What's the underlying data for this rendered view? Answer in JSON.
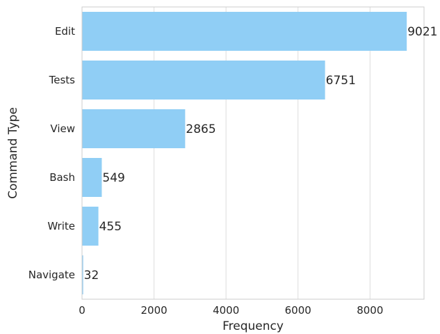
{
  "chart_data": {
    "type": "bar",
    "orientation": "horizontal",
    "categories": [
      "Edit",
      "Tests",
      "View",
      "Bash",
      "Write",
      "Navigate"
    ],
    "values": [
      9021,
      6751,
      2865,
      549,
      455,
      32
    ],
    "xlabel": "Frequency",
    "ylabel": "Command Type",
    "xlim": [
      0,
      9500
    ],
    "xticks": [
      0,
      2000,
      4000,
      6000,
      8000
    ],
    "xtick_labels": [
      "0",
      "2000",
      "4000",
      "6000",
      "8000"
    ],
    "grid": "vertical",
    "bar_color": "#90CEF5",
    "data_labels": [
      "9021",
      "6751",
      "2865",
      "549",
      "455",
      "32"
    ]
  }
}
